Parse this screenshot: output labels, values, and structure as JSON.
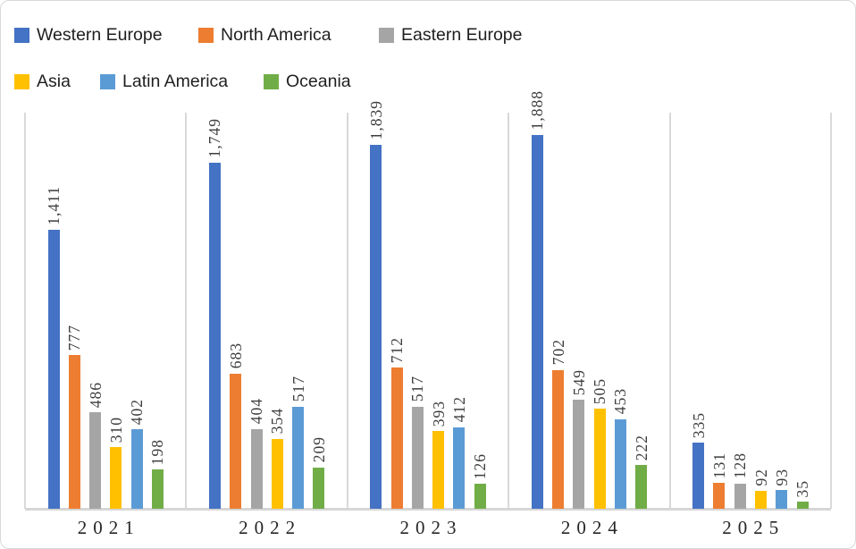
{
  "chart_data": {
    "type": "bar",
    "title": "",
    "categories": [
      "2021",
      "2022",
      "2023",
      "2024",
      "2025"
    ],
    "series": [
      {
        "name": "Western Europe",
        "color": "#4472C4",
        "values": [
          1411,
          1749,
          1839,
          1888,
          335
        ],
        "labels": [
          "1,411",
          "1,749",
          "1,839",
          "1,888",
          "335"
        ]
      },
      {
        "name": "North America",
        "color": "#ED7D31",
        "values": [
          777,
          683,
          712,
          702,
          131
        ],
        "labels": [
          "777",
          "683",
          "712",
          "702",
          "131"
        ]
      },
      {
        "name": "Eastern Europe",
        "color": "#A5A5A5",
        "values": [
          486,
          404,
          517,
          549,
          128
        ],
        "labels": [
          "486",
          "404",
          "517",
          "549",
          "128"
        ]
      },
      {
        "name": "Asia",
        "color": "#FFC000",
        "values": [
          310,
          354,
          393,
          505,
          92
        ],
        "labels": [
          "310",
          "354",
          "393",
          "505",
          "92"
        ]
      },
      {
        "name": "Latin America",
        "color": "#5B9BD5",
        "values": [
          402,
          517,
          412,
          453,
          93
        ],
        "labels": [
          "402",
          "517",
          "412",
          "453",
          "93"
        ]
      },
      {
        "name": "Oceania",
        "color": "#70AD47",
        "values": [
          198,
          209,
          126,
          222,
          35
        ],
        "labels": [
          "198",
          "209",
          "126",
          "222",
          "35"
        ]
      }
    ],
    "xlabel": "",
    "ylabel": "",
    "ylim": [
      0,
      2000
    ],
    "grid": "vertical separators between category panels, no horizontal gridlines",
    "legend_position": "top-left, two rows",
    "data_label_rotation": -90,
    "axis_color": "#D9D9D9"
  },
  "legend": {
    "rows": [
      [
        "Western Europe",
        "North America",
        "Eastern Europe"
      ],
      [
        "Asia",
        "Latin America",
        "Oceania"
      ]
    ]
  }
}
